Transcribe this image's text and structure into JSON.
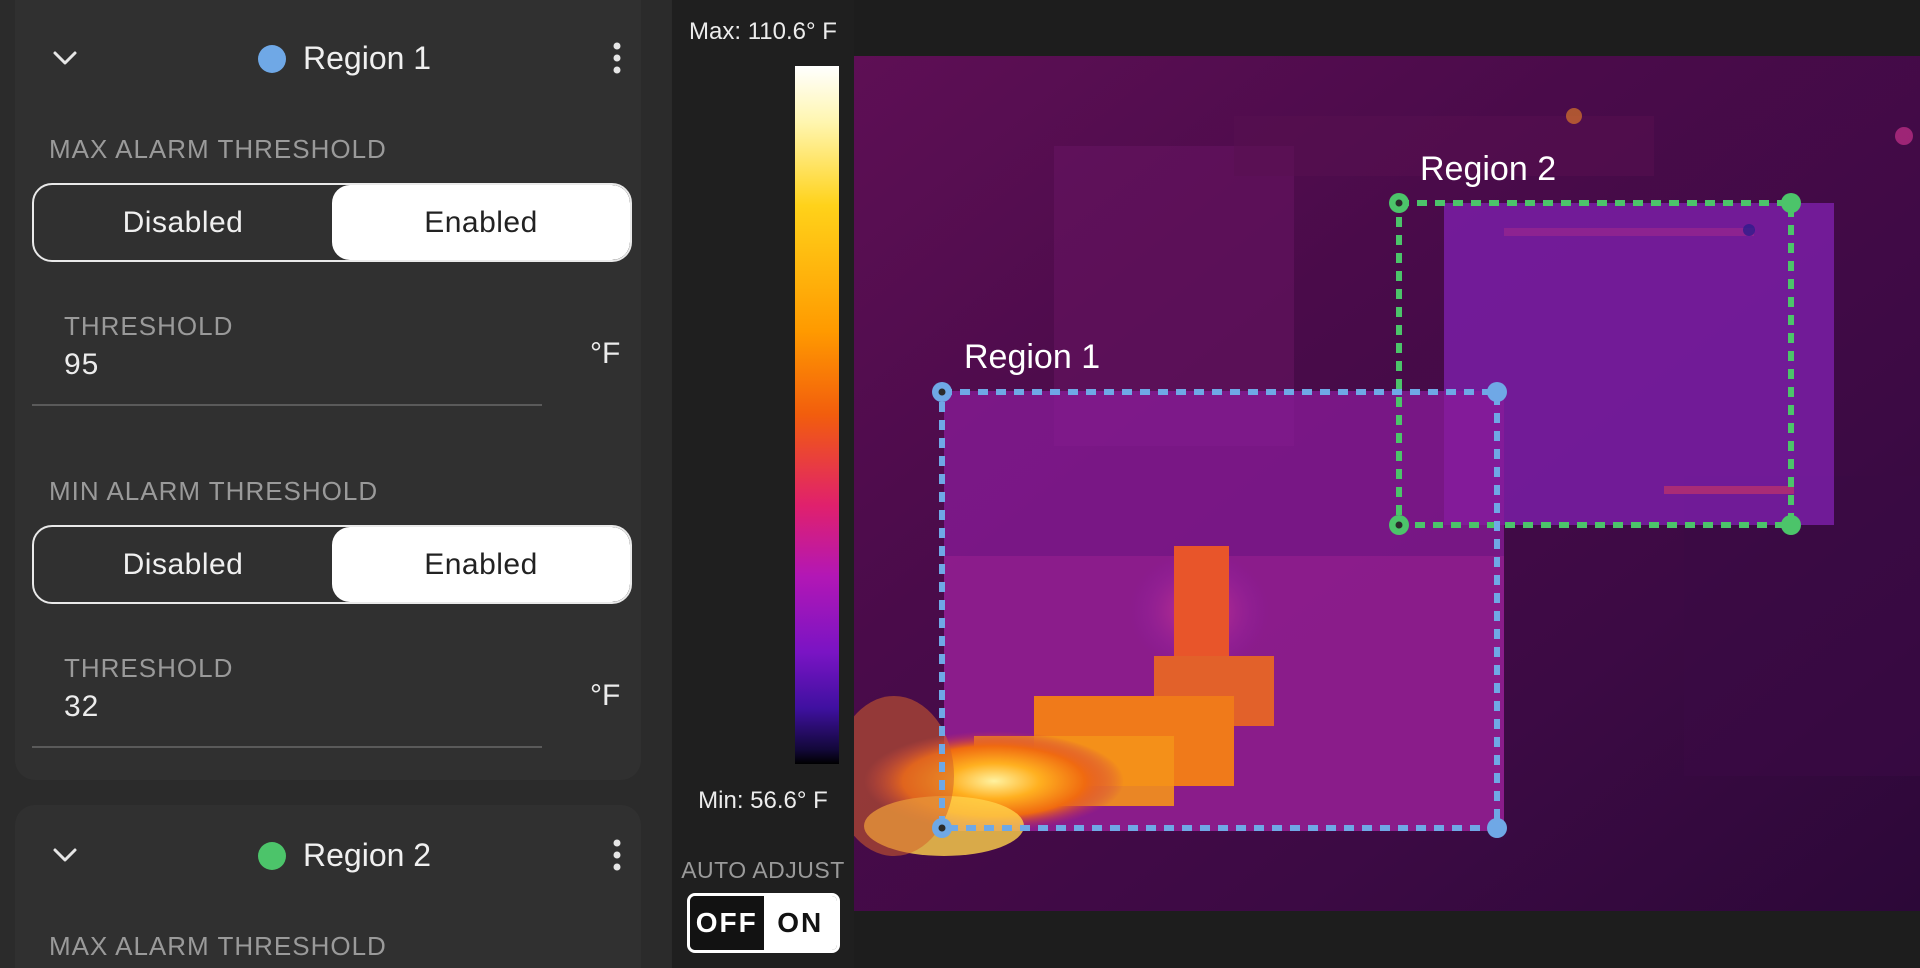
{
  "regions": [
    {
      "name": "Region 1",
      "color": "#6fa8e6",
      "max_alarm": {
        "label": "MAX ALARM THRESHOLD",
        "options": [
          "Disabled",
          "Enabled"
        ],
        "selected": "Enabled",
        "threshold_label": "THRESHOLD",
        "threshold_value": "95",
        "unit": "°F"
      },
      "min_alarm": {
        "label": "MIN ALARM THRESHOLD",
        "options": [
          "Disabled",
          "Enabled"
        ],
        "selected": "Enabled",
        "threshold_label": "THRESHOLD",
        "threshold_value": "32",
        "unit": "°F"
      }
    },
    {
      "name": "Region 2",
      "color": "#4cc46a",
      "max_alarm": {
        "label": "MAX ALARM THRESHOLD"
      }
    }
  ],
  "scale": {
    "max_label": "Max: 110.6° F",
    "min_label": "Min: 56.6° F",
    "auto_adjust_label": "AUTO ADJUST",
    "auto_adjust_off": "OFF",
    "auto_adjust_on": "ON",
    "auto_adjust_state": "OFF"
  },
  "overlay": {
    "region_1_label": "Region 1",
    "region_2_label": "Region 2",
    "region_1_color": "#6fa8e6",
    "region_2_color": "#4cc46a"
  },
  "icons": {
    "collapse": "chevron-down-icon",
    "menu": "more-vertical-icon"
  }
}
